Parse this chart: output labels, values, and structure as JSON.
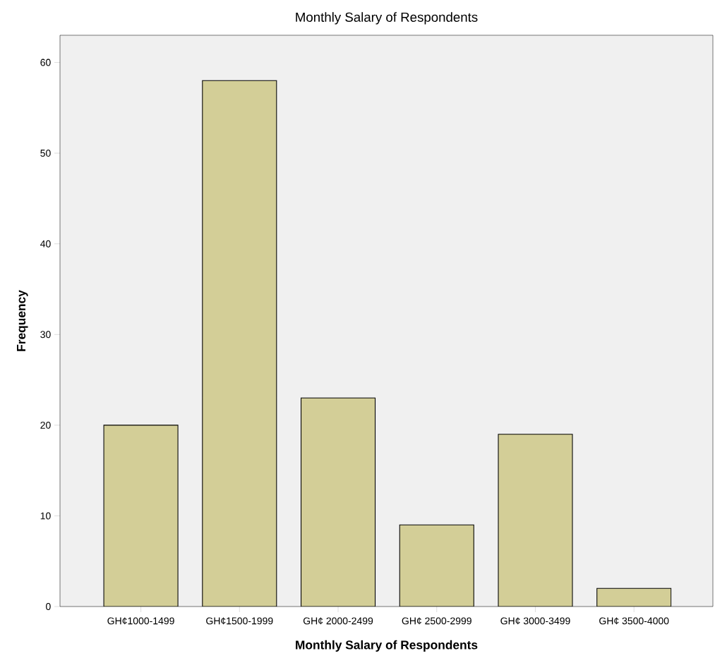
{
  "chart_data": {
    "type": "bar",
    "title": "Monthly Salary of Respondents",
    "xlabel": "Monthly Salary of Respondents",
    "ylabel": "Frequency",
    "categories": [
      "GH¢1000-1499",
      "GH¢1500-1999",
      "GH¢ 2000-2499",
      "GH¢ 2500-2999",
      "GH¢ 3000-3499",
      "GH¢ 3500-4000"
    ],
    "values": [
      20,
      58,
      23,
      9,
      19,
      2
    ],
    "color": "#d3ce97",
    "ylim": [
      0,
      63
    ],
    "yticks": [
      0,
      10,
      20,
      30,
      40,
      50,
      60
    ]
  }
}
